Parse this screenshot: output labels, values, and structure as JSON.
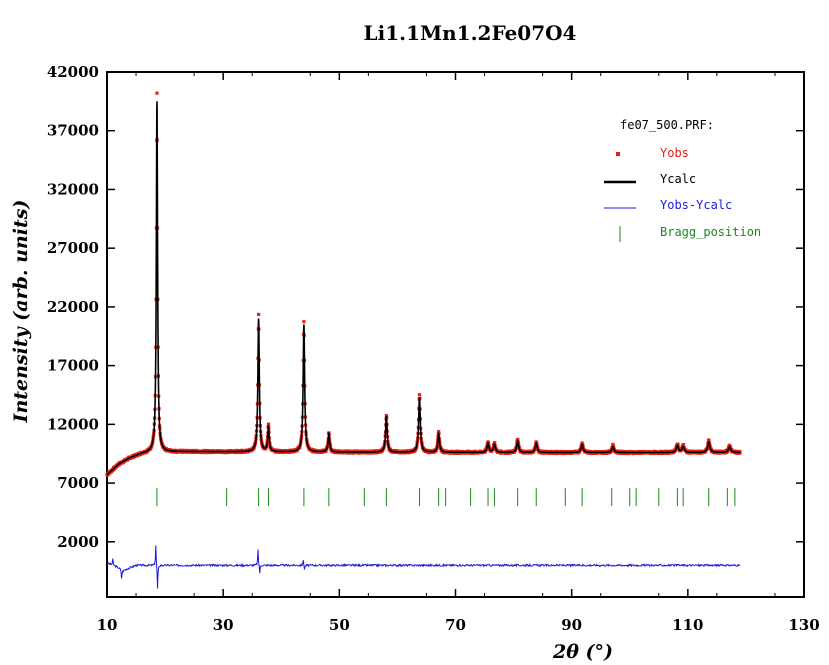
{
  "chart_data": {
    "type": "line",
    "title": "Li1.1Mn1.2Fe07O4",
    "xlabel": "2θ (°)",
    "ylabel": "Intensity (arb. units)",
    "xlim": [
      10,
      130
    ],
    "ylim": [
      -2700,
      42000
    ],
    "xticks": [
      10,
      30,
      50,
      70,
      90,
      110,
      130
    ],
    "yticks": [
      2000,
      7000,
      12000,
      17000,
      22000,
      27000,
      32000,
      37000,
      42000
    ],
    "legend_title": "fe07_500.PRF:",
    "legend_position": "top-right",
    "colors": {
      "yobs": "#e8201a",
      "ycalc": "#000000",
      "diff": "#1a1ae0",
      "bragg": "#1a8a1a"
    },
    "series": [
      {
        "name": "Yobs",
        "style": "points"
      },
      {
        "name": "Ycalc",
        "style": "line"
      },
      {
        "name": "Yobs-Ycalc",
        "style": "line"
      },
      {
        "name": "Bragg_position",
        "style": "ticks"
      }
    ],
    "background": [
      [
        10,
        7700
      ],
      [
        12,
        8600
      ],
      [
        14,
        9150
      ],
      [
        16,
        9500
      ],
      [
        18,
        9650
      ],
      [
        25,
        9680
      ],
      [
        40,
        9650
      ],
      [
        60,
        9620
      ],
      [
        80,
        9600
      ],
      [
        100,
        9600
      ],
      [
        119,
        9600
      ]
    ],
    "peaks": [
      {
        "x": 18.6,
        "y": 39500,
        "yobs": 40200
      },
      {
        "x": 36.1,
        "y": 21000,
        "yobs": 21300
      },
      {
        "x": 37.8,
        "y": 11800,
        "yobs": 11900
      },
      {
        "x": 43.9,
        "y": 20500,
        "yobs": 20700
      },
      {
        "x": 48.2,
        "y": 11200,
        "yobs": 11300
      },
      {
        "x": 58.1,
        "y": 12700,
        "yobs": 12800
      },
      {
        "x": 63.8,
        "y": 14300,
        "yobs": 14500
      },
      {
        "x": 67.1,
        "y": 11200,
        "yobs": 11300
      },
      {
        "x": 75.6,
        "y": 10400,
        "yobs": 10500
      },
      {
        "x": 76.7,
        "y": 10300,
        "yobs": 10400
      },
      {
        "x": 80.7,
        "y": 10600,
        "yobs": 10700
      },
      {
        "x": 83.9,
        "y": 10400,
        "yobs": 10500
      },
      {
        "x": 91.8,
        "y": 10300,
        "yobs": 10400
      },
      {
        "x": 97.1,
        "y": 10100,
        "yobs": 10200
      },
      {
        "x": 108.2,
        "y": 10200,
        "yobs": 10300
      },
      {
        "x": 109.2,
        "y": 10100,
        "yobs": 10200
      },
      {
        "x": 113.6,
        "y": 10500,
        "yobs": 10600
      },
      {
        "x": 117.2,
        "y": 10100,
        "yobs": 10200
      }
    ],
    "bragg_positions": [
      18.6,
      30.6,
      36.1,
      37.8,
      43.9,
      48.2,
      54.3,
      58.1,
      63.8,
      67.1,
      68.3,
      72.6,
      75.6,
      76.7,
      80.7,
      83.9,
      88.9,
      91.8,
      96.9,
      100.0,
      101.1,
      105.0,
      108.2,
      109.2,
      113.6,
      116.8,
      118.1
    ],
    "bragg_y": 5800,
    "diff_baseline": 0,
    "diff_spikes": [
      {
        "x": 11.0,
        "y": 500
      },
      {
        "x": 12.5,
        "y": -800
      },
      {
        "x": 18.4,
        "y": 1800
      },
      {
        "x": 18.7,
        "y": -2100
      },
      {
        "x": 36.0,
        "y": 1300
      },
      {
        "x": 36.3,
        "y": -700
      },
      {
        "x": 43.8,
        "y": 500
      },
      {
        "x": 44.0,
        "y": -400
      }
    ]
  }
}
